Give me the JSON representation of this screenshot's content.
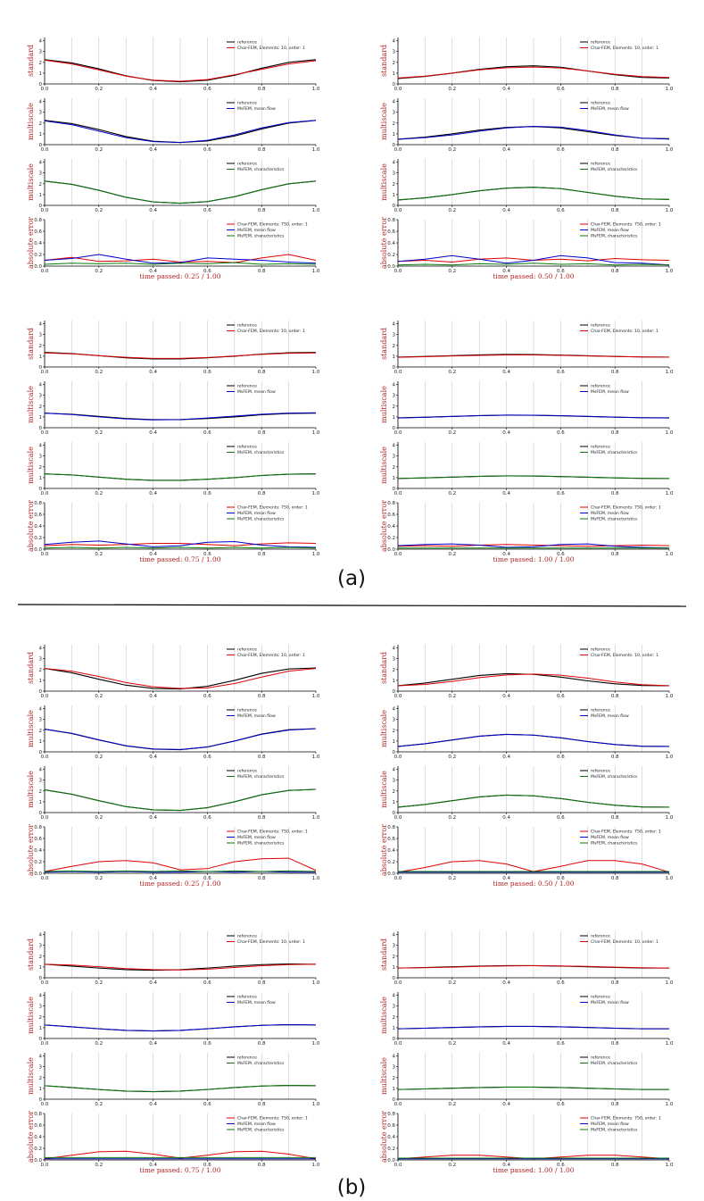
{
  "chart_data": {
    "type": "line",
    "x_range": [
      0,
      1
    ],
    "x_ticks": [
      "0.0",
      "0.2",
      "0.4",
      "0.6",
      "0.8",
      "1.0"
    ],
    "value_ticks": [
      "0",
      "1",
      "2",
      "3",
      "4"
    ],
    "error_ticks": [
      "0.0",
      "0.2",
      "0.4",
      "0.6",
      "0.8"
    ],
    "ylim_value": [
      0,
      4.3
    ],
    "ylim_error": [
      0,
      0.8
    ],
    "grid": "vertical",
    "legend_position": "top-right",
    "row_labels": {
      "standard": "standard",
      "multiscale": "multiscale",
      "error": "absolute error"
    },
    "legends": {
      "standard": [
        "reference",
        "Char-FEM, Elements: 10, order: 1"
      ],
      "meanflow": [
        "reference",
        "MsFEM, mean flow"
      ],
      "characteristics": [
        "reference",
        "MsFEM, characteristics"
      ],
      "error": [
        "Char-FEM, Elements: 750, order: 1",
        "MsFEM, mean flow",
        "MsFEM, characteristics"
      ]
    },
    "colors": {
      "reference": "#000000",
      "charfem": "#e00000",
      "meanflow": "#0000cc",
      "characteristics": "#0a7a0a",
      "grid": "#c8c8c8",
      "caption": "#b22222"
    },
    "panel_labels": [
      "(a)",
      "(b)"
    ],
    "panels": [
      {
        "label": "(a)",
        "snapshots": [
          {
            "time_label": "time passed:   0.25 / 1.00",
            "x": [
              0.0,
              0.1,
              0.2,
              0.3,
              0.4,
              0.5,
              0.6,
              0.7,
              0.8,
              0.9,
              1.0
            ],
            "reference": [
              2.25,
              1.95,
              1.4,
              0.75,
              0.32,
              0.2,
              0.35,
              0.8,
              1.45,
              2.0,
              2.25
            ],
            "charfem": [
              2.2,
              1.85,
              1.3,
              0.72,
              0.35,
              0.25,
              0.4,
              0.85,
              1.35,
              1.85,
              2.15
            ],
            "meanflow": [
              2.2,
              1.85,
              1.25,
              0.65,
              0.28,
              0.2,
              0.4,
              0.9,
              1.55,
              2.05,
              2.25
            ],
            "characteristics": [
              2.25,
              1.95,
              1.4,
              0.75,
              0.32,
              0.2,
              0.35,
              0.8,
              1.45,
              2.0,
              2.25
            ],
            "err_charfem": [
              0.1,
              0.15,
              0.08,
              0.09,
              0.12,
              0.07,
              0.08,
              0.06,
              0.14,
              0.2,
              0.1
            ],
            "err_meanflow": [
              0.1,
              0.13,
              0.2,
              0.12,
              0.05,
              0.06,
              0.14,
              0.12,
              0.1,
              0.07,
              0.05
            ],
            "err_characteristics": [
              0.03,
              0.05,
              0.04,
              0.05,
              0.03,
              0.05,
              0.04,
              0.06,
              0.03,
              0.04,
              0.03
            ]
          },
          {
            "time_label": "time passed:   0.50 / 1.00",
            "x": [
              0.0,
              0.1,
              0.2,
              0.3,
              0.4,
              0.5,
              0.6,
              0.7,
              0.8,
              0.9,
              1.0
            ],
            "reference": [
              0.5,
              0.7,
              1.0,
              1.35,
              1.6,
              1.68,
              1.55,
              1.2,
              0.85,
              0.6,
              0.55
            ],
            "charfem": [
              0.55,
              0.72,
              1.0,
              1.3,
              1.5,
              1.56,
              1.48,
              1.2,
              0.9,
              0.68,
              0.6
            ],
            "meanflow": [
              0.5,
              0.65,
              0.9,
              1.25,
              1.55,
              1.7,
              1.62,
              1.3,
              0.9,
              0.6,
              0.52
            ],
            "characteristics": [
              0.5,
              0.7,
              1.0,
              1.35,
              1.6,
              1.68,
              1.55,
              1.2,
              0.85,
              0.6,
              0.55
            ],
            "err_charfem": [
              0.08,
              0.1,
              0.07,
              0.12,
              0.14,
              0.1,
              0.12,
              0.09,
              0.13,
              0.11,
              0.1
            ],
            "err_meanflow": [
              0.08,
              0.12,
              0.18,
              0.12,
              0.05,
              0.1,
              0.18,
              0.14,
              0.06,
              0.05,
              0.02
            ],
            "err_characteristics": [
              0.02,
              0.03,
              0.02,
              0.04,
              0.03,
              0.05,
              0.03,
              0.04,
              0.02,
              0.03,
              0.02
            ]
          },
          {
            "time_label": "time passed:   0.75 / 1.00",
            "x": [
              0.0,
              0.1,
              0.2,
              0.3,
              0.4,
              0.5,
              0.6,
              0.7,
              0.8,
              0.9,
              1.0
            ],
            "reference": [
              1.35,
              1.25,
              1.05,
              0.85,
              0.75,
              0.75,
              0.85,
              1.0,
              1.2,
              1.32,
              1.35
            ],
            "charfem": [
              1.3,
              1.22,
              1.05,
              0.9,
              0.8,
              0.8,
              0.88,
              1.02,
              1.17,
              1.27,
              1.3
            ],
            "meanflow": [
              1.35,
              1.22,
              1.0,
              0.82,
              0.72,
              0.75,
              0.9,
              1.08,
              1.25,
              1.35,
              1.38
            ],
            "characteristics": [
              1.35,
              1.25,
              1.05,
              0.85,
              0.75,
              0.75,
              0.85,
              1.0,
              1.2,
              1.32,
              1.35
            ],
            "err_charfem": [
              0.06,
              0.08,
              0.07,
              0.08,
              0.1,
              0.1,
              0.08,
              0.06,
              0.09,
              0.11,
              0.1
            ],
            "err_meanflow": [
              0.08,
              0.12,
              0.14,
              0.09,
              0.04,
              0.06,
              0.12,
              0.13,
              0.07,
              0.04,
              0.03
            ],
            "err_characteristics": [
              0.02,
              0.03,
              0.02,
              0.03,
              0.02,
              0.03,
              0.02,
              0.03,
              0.02,
              0.03,
              0.02
            ]
          },
          {
            "time_label": "time passed:   1.00 / 1.00",
            "x": [
              0.0,
              0.1,
              0.2,
              0.3,
              0.4,
              0.5,
              0.6,
              0.7,
              0.8,
              0.9,
              1.0
            ],
            "reference": [
              0.92,
              0.98,
              1.05,
              1.12,
              1.16,
              1.15,
              1.1,
              1.04,
              0.98,
              0.93,
              0.92
            ],
            "charfem": [
              0.9,
              0.95,
              1.02,
              1.08,
              1.12,
              1.12,
              1.08,
              1.02,
              0.97,
              0.93,
              0.91
            ],
            "meanflow": [
              0.9,
              0.96,
              1.04,
              1.12,
              1.17,
              1.16,
              1.12,
              1.05,
              0.98,
              0.92,
              0.9
            ],
            "characteristics": [
              0.92,
              0.98,
              1.05,
              1.12,
              1.16,
              1.15,
              1.1,
              1.04,
              0.98,
              0.93,
              0.92
            ],
            "err_charfem": [
              0.05,
              0.06,
              0.05,
              0.07,
              0.08,
              0.07,
              0.06,
              0.05,
              0.06,
              0.07,
              0.06
            ],
            "err_meanflow": [
              0.06,
              0.08,
              0.09,
              0.07,
              0.03,
              0.04,
              0.08,
              0.09,
              0.05,
              0.03,
              0.02
            ],
            "err_characteristics": [
              0.02,
              0.02,
              0.02,
              0.02,
              0.02,
              0.02,
              0.02,
              0.02,
              0.02,
              0.02,
              0.02
            ]
          }
        ]
      },
      {
        "label": "(b)",
        "snapshots": [
          {
            "time_label": "time passed:   0.25 / 1.00",
            "x": [
              0.0,
              0.1,
              0.2,
              0.3,
              0.4,
              0.5,
              0.6,
              0.7,
              0.8,
              0.9,
              1.0
            ],
            "reference": [
              2.1,
              1.7,
              1.1,
              0.55,
              0.25,
              0.2,
              0.45,
              1.0,
              1.65,
              2.05,
              2.15
            ],
            "charfem": [
              2.1,
              1.85,
              1.35,
              0.8,
              0.4,
              0.25,
              0.3,
              0.7,
              1.3,
              1.85,
              2.1
            ],
            "meanflow": [
              2.1,
              1.72,
              1.12,
              0.57,
              0.27,
              0.22,
              0.45,
              1.0,
              1.62,
              2.02,
              2.15
            ],
            "characteristics": [
              2.1,
              1.7,
              1.1,
              0.55,
              0.25,
              0.2,
              0.45,
              1.0,
              1.65,
              2.05,
              2.15
            ],
            "err_charfem": [
              0.03,
              0.12,
              0.2,
              0.22,
              0.18,
              0.06,
              0.08,
              0.2,
              0.25,
              0.26,
              0.05
            ],
            "err_meanflow": [
              0.02,
              0.03,
              0.02,
              0.03,
              0.02,
              0.02,
              0.03,
              0.02,
              0.03,
              0.02,
              0.02
            ],
            "err_characteristics": [
              0.03,
              0.04,
              0.03,
              0.04,
              0.03,
              0.04,
              0.03,
              0.04,
              0.03,
              0.04,
              0.03
            ]
          },
          {
            "time_label": "time passed:   0.50 / 1.00",
            "x": [
              0.0,
              0.1,
              0.2,
              0.3,
              0.4,
              0.5,
              0.6,
              0.7,
              0.8,
              0.9,
              1.0
            ],
            "reference": [
              0.5,
              0.75,
              1.1,
              1.45,
              1.62,
              1.55,
              1.3,
              0.95,
              0.68,
              0.52,
              0.5
            ],
            "charfem": [
              0.5,
              0.62,
              0.9,
              1.25,
              1.5,
              1.58,
              1.48,
              1.2,
              0.85,
              0.6,
              0.5
            ],
            "meanflow": [
              0.5,
              0.75,
              1.1,
              1.45,
              1.62,
              1.55,
              1.3,
              0.95,
              0.68,
              0.52,
              0.5
            ],
            "characteristics": [
              0.5,
              0.75,
              1.1,
              1.45,
              1.62,
              1.55,
              1.3,
              0.95,
              0.68,
              0.52,
              0.5
            ],
            "err_charfem": [
              0.02,
              0.1,
              0.2,
              0.22,
              0.16,
              0.03,
              0.12,
              0.22,
              0.22,
              0.16,
              0.02
            ],
            "err_meanflow": [
              0.02,
              0.02,
              0.02,
              0.02,
              0.02,
              0.02,
              0.02,
              0.02,
              0.02,
              0.02,
              0.02
            ],
            "err_characteristics": [
              0.03,
              0.03,
              0.03,
              0.03,
              0.03,
              0.03,
              0.03,
              0.03,
              0.03,
              0.03,
              0.03
            ]
          },
          {
            "time_label": "time passed:   0.75 / 1.00",
            "x": [
              0.0,
              0.1,
              0.2,
              0.3,
              0.4,
              0.5,
              0.6,
              0.7,
              0.8,
              0.9,
              1.0
            ],
            "reference": [
              1.25,
              1.08,
              0.9,
              0.75,
              0.7,
              0.75,
              0.9,
              1.08,
              1.22,
              1.28,
              1.25
            ],
            "charfem": [
              1.25,
              1.18,
              1.02,
              0.85,
              0.75,
              0.72,
              0.8,
              0.95,
              1.12,
              1.22,
              1.25
            ],
            "meanflow": [
              1.25,
              1.08,
              0.9,
              0.75,
              0.7,
              0.75,
              0.9,
              1.08,
              1.22,
              1.28,
              1.25
            ],
            "characteristics": [
              1.25,
              1.08,
              0.9,
              0.75,
              0.7,
              0.75,
              0.9,
              1.08,
              1.22,
              1.28,
              1.25
            ],
            "err_charfem": [
              0.02,
              0.08,
              0.14,
              0.15,
              0.1,
              0.03,
              0.08,
              0.14,
              0.15,
              0.1,
              0.02
            ],
            "err_meanflow": [
              0.02,
              0.02,
              0.02,
              0.02,
              0.02,
              0.02,
              0.02,
              0.02,
              0.02,
              0.02,
              0.02
            ],
            "err_characteristics": [
              0.04,
              0.04,
              0.04,
              0.04,
              0.04,
              0.04,
              0.04,
              0.04,
              0.04,
              0.04,
              0.04
            ]
          },
          {
            "time_label": "time passed:   1.00 / 1.00",
            "x": [
              0.0,
              0.1,
              0.2,
              0.3,
              0.4,
              0.5,
              0.6,
              0.7,
              0.8,
              0.9,
              1.0
            ],
            "reference": [
              0.9,
              0.95,
              1.02,
              1.08,
              1.12,
              1.12,
              1.08,
              1.02,
              0.95,
              0.9,
              0.9
            ],
            "charfem": [
              0.9,
              0.93,
              0.98,
              1.05,
              1.1,
              1.12,
              1.1,
              1.05,
              0.98,
              0.93,
              0.9
            ],
            "meanflow": [
              0.9,
              0.95,
              1.02,
              1.08,
              1.12,
              1.12,
              1.08,
              1.02,
              0.95,
              0.9,
              0.9
            ],
            "characteristics": [
              0.9,
              0.95,
              1.02,
              1.08,
              1.12,
              1.12,
              1.08,
              1.02,
              0.95,
              0.9,
              0.9
            ],
            "err_charfem": [
              0.02,
              0.05,
              0.08,
              0.08,
              0.05,
              0.02,
              0.05,
              0.08,
              0.08,
              0.05,
              0.02
            ],
            "err_meanflow": [
              0.02,
              0.02,
              0.02,
              0.02,
              0.02,
              0.02,
              0.02,
              0.02,
              0.02,
              0.02,
              0.02
            ],
            "err_characteristics": [
              0.03,
              0.03,
              0.03,
              0.03,
              0.03,
              0.03,
              0.03,
              0.03,
              0.03,
              0.03,
              0.03
            ]
          }
        ]
      }
    ]
  }
}
